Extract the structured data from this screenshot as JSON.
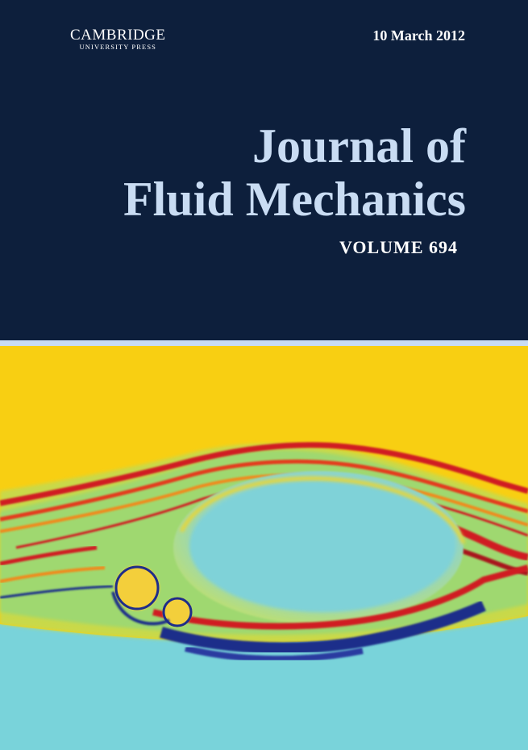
{
  "publisher": {
    "name": "CAMBRIDGE",
    "subline": "UNIVERSITY PRESS"
  },
  "issue": {
    "date": "10 March 2012",
    "volume": "VOLUME 694"
  },
  "journal": {
    "title_line1": "Journal of",
    "title_line2": "Fluid Mechanics"
  },
  "colors": {
    "navy": "#0d1f3c",
    "title_blue": "#c9dcf3",
    "field_yellow": "#f8cf12",
    "field_cyan": "#79d3da",
    "vortex_red": "#d01e22",
    "vortex_navy": "#1e2d8a"
  }
}
